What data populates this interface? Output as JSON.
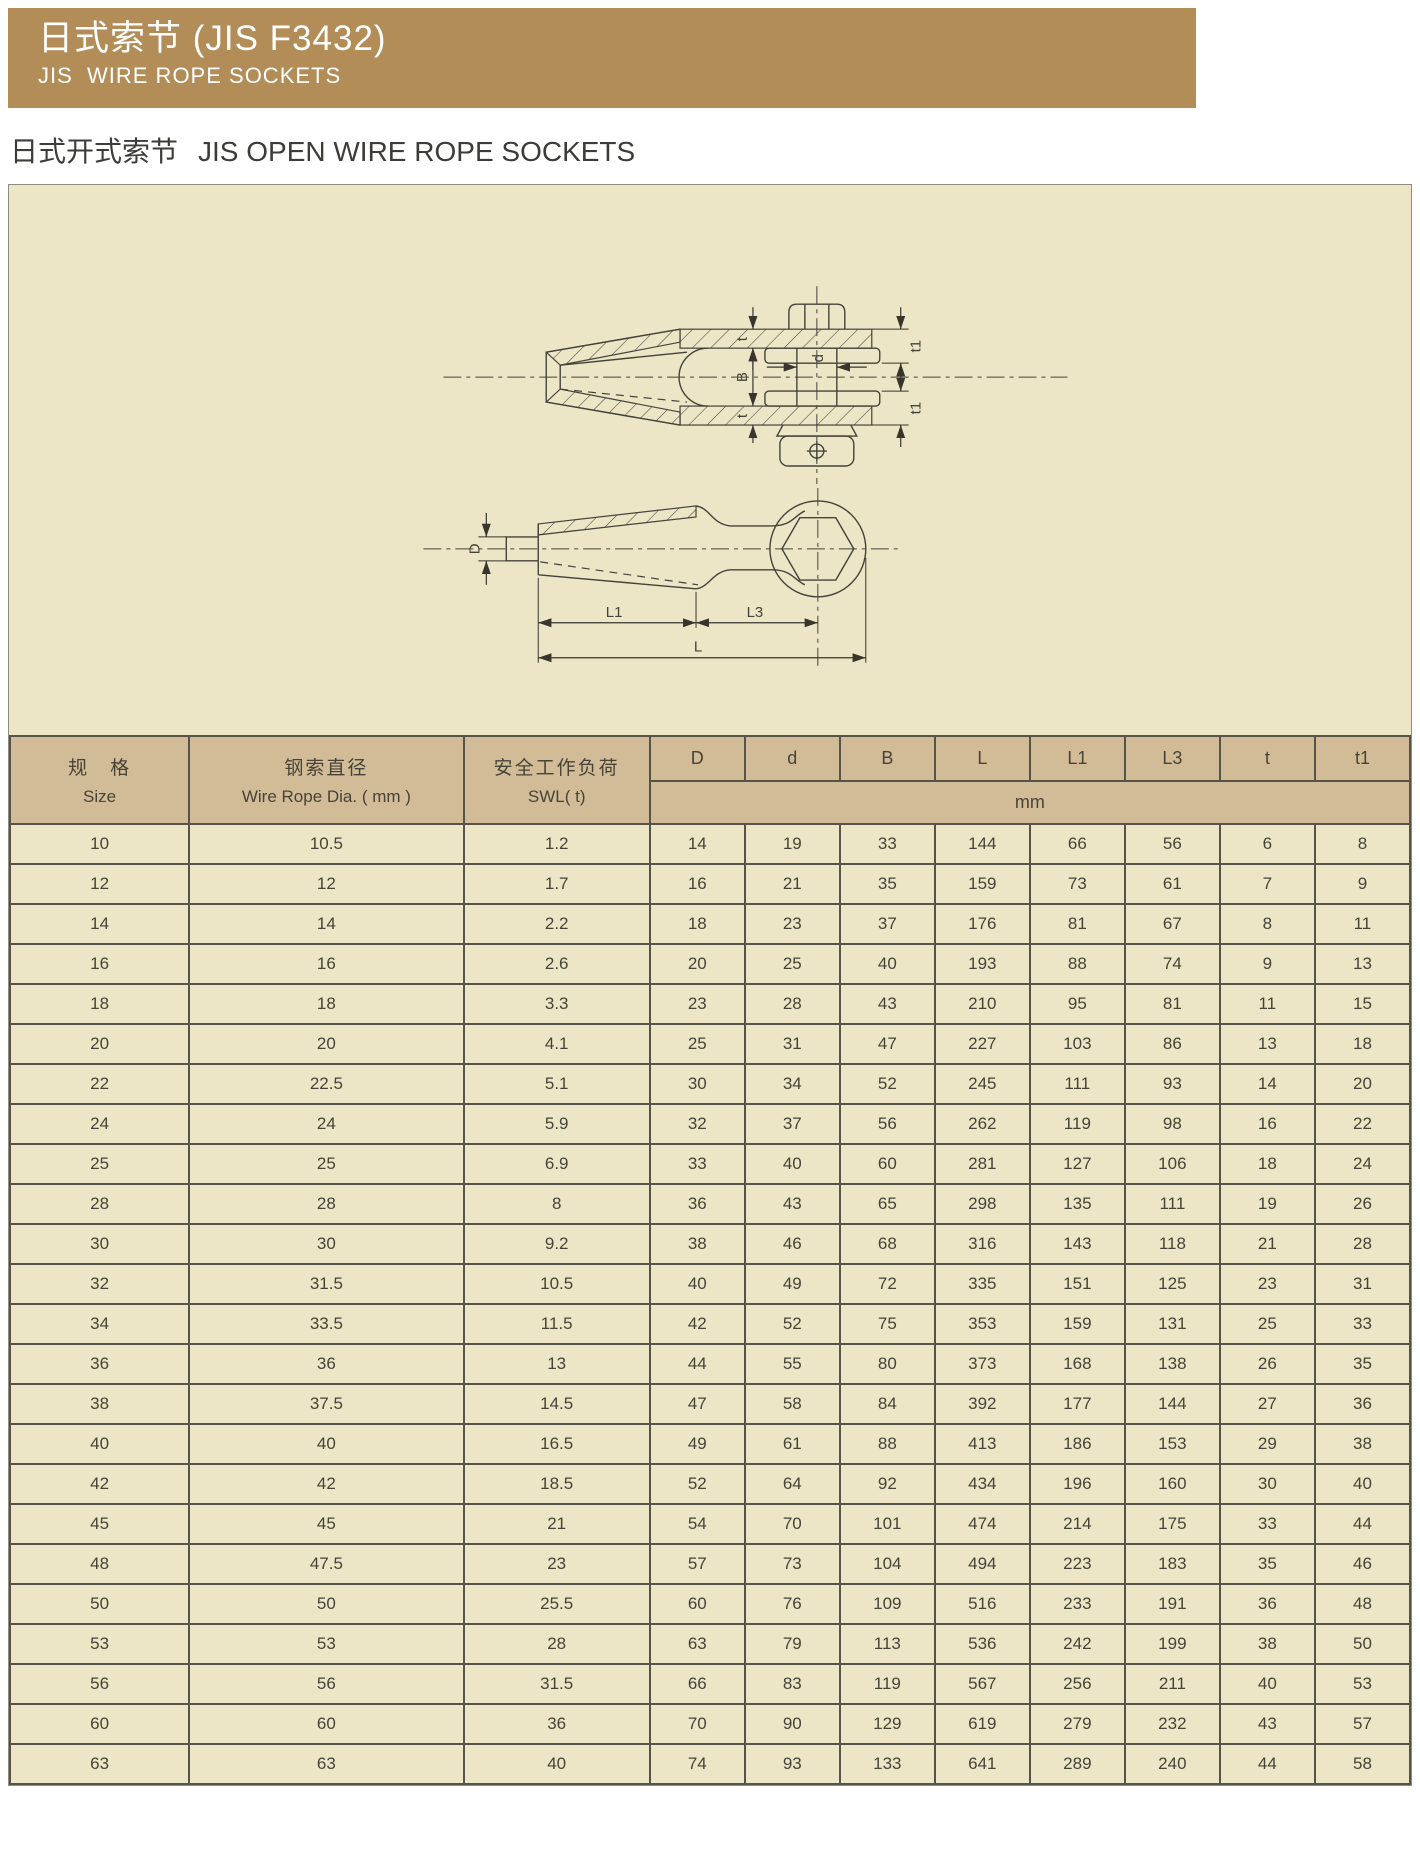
{
  "banner": {
    "title": "日式索节 (JIS F3432)",
    "subtitle": "JIS  WIRE ROPE SOCKETS"
  },
  "section": {
    "title_cn": "日式开式索节",
    "title_en": "JIS OPEN WIRE ROPE SOCKETS"
  },
  "colors": {
    "banner_bg": "#b28d58",
    "panel_bg": "#ece5c6",
    "header_bg": "#d2bc97",
    "grid_border": "#57534a",
    "text": "#474337"
  },
  "diagram": {
    "labels": {
      "t_top": "t",
      "B": "B",
      "t_bottom": "t",
      "d": "d",
      "t1_top": "t1",
      "t1_bottom": "t1",
      "D": "D",
      "L1": "L1",
      "L3": "L3",
      "L": "L"
    }
  },
  "table": {
    "headers": {
      "size_cn": "规　格",
      "size_en": "Size",
      "dia_cn": "钢索直径",
      "dia_en": "Wire Rope Dia. ( mm )",
      "swl_cn": "安全工作负荷",
      "swl_en": "SWL( t)",
      "dims": [
        "D",
        "d",
        "B",
        "L",
        "L1",
        "L3",
        "t",
        "t1"
      ],
      "unit": "mm"
    },
    "rows": [
      [
        "10",
        "10.5",
        "1.2",
        "14",
        "19",
        "33",
        "144",
        "66",
        "56",
        "6",
        "8"
      ],
      [
        "12",
        "12",
        "1.7",
        "16",
        "21",
        "35",
        "159",
        "73",
        "61",
        "7",
        "9"
      ],
      [
        "14",
        "14",
        "2.2",
        "18",
        "23",
        "37",
        "176",
        "81",
        "67",
        "8",
        "11"
      ],
      [
        "16",
        "16",
        "2.6",
        "20",
        "25",
        "40",
        "193",
        "88",
        "74",
        "9",
        "13"
      ],
      [
        "18",
        "18",
        "3.3",
        "23",
        "28",
        "43",
        "210",
        "95",
        "81",
        "11",
        "15"
      ],
      [
        "20",
        "20",
        "4.1",
        "25",
        "31",
        "47",
        "227",
        "103",
        "86",
        "13",
        "18"
      ],
      [
        "22",
        "22.5",
        "5.1",
        "30",
        "34",
        "52",
        "245",
        "111",
        "93",
        "14",
        "20"
      ],
      [
        "24",
        "24",
        "5.9",
        "32",
        "37",
        "56",
        "262",
        "119",
        "98",
        "16",
        "22"
      ],
      [
        "25",
        "25",
        "6.9",
        "33",
        "40",
        "60",
        "281",
        "127",
        "106",
        "18",
        "24"
      ],
      [
        "28",
        "28",
        "8",
        "36",
        "43",
        "65",
        "298",
        "135",
        "111",
        "19",
        "26"
      ],
      [
        "30",
        "30",
        "9.2",
        "38",
        "46",
        "68",
        "316",
        "143",
        "118",
        "21",
        "28"
      ],
      [
        "32",
        "31.5",
        "10.5",
        "40",
        "49",
        "72",
        "335",
        "151",
        "125",
        "23",
        "31"
      ],
      [
        "34",
        "33.5",
        "11.5",
        "42",
        "52",
        "75",
        "353",
        "159",
        "131",
        "25",
        "33"
      ],
      [
        "36",
        "36",
        "13",
        "44",
        "55",
        "80",
        "373",
        "168",
        "138",
        "26",
        "35"
      ],
      [
        "38",
        "37.5",
        "14.5",
        "47",
        "58",
        "84",
        "392",
        "177",
        "144",
        "27",
        "36"
      ],
      [
        "40",
        "40",
        "16.5",
        "49",
        "61",
        "88",
        "413",
        "186",
        "153",
        "29",
        "38"
      ],
      [
        "42",
        "42",
        "18.5",
        "52",
        "64",
        "92",
        "434",
        "196",
        "160",
        "30",
        "40"
      ],
      [
        "45",
        "45",
        "21",
        "54",
        "70",
        "101",
        "474",
        "214",
        "175",
        "33",
        "44"
      ],
      [
        "48",
        "47.5",
        "23",
        "57",
        "73",
        "104",
        "494",
        "223",
        "183",
        "35",
        "46"
      ],
      [
        "50",
        "50",
        "25.5",
        "60",
        "76",
        "109",
        "516",
        "233",
        "191",
        "36",
        "48"
      ],
      [
        "53",
        "53",
        "28",
        "63",
        "79",
        "113",
        "536",
        "242",
        "199",
        "38",
        "50"
      ],
      [
        "56",
        "56",
        "31.5",
        "66",
        "83",
        "119",
        "567",
        "256",
        "211",
        "40",
        "53"
      ],
      [
        "60",
        "60",
        "36",
        "70",
        "90",
        "129",
        "619",
        "279",
        "232",
        "43",
        "57"
      ],
      [
        "63",
        "63",
        "40",
        "74",
        "93",
        "133",
        "641",
        "289",
        "240",
        "44",
        "58"
      ]
    ]
  }
}
